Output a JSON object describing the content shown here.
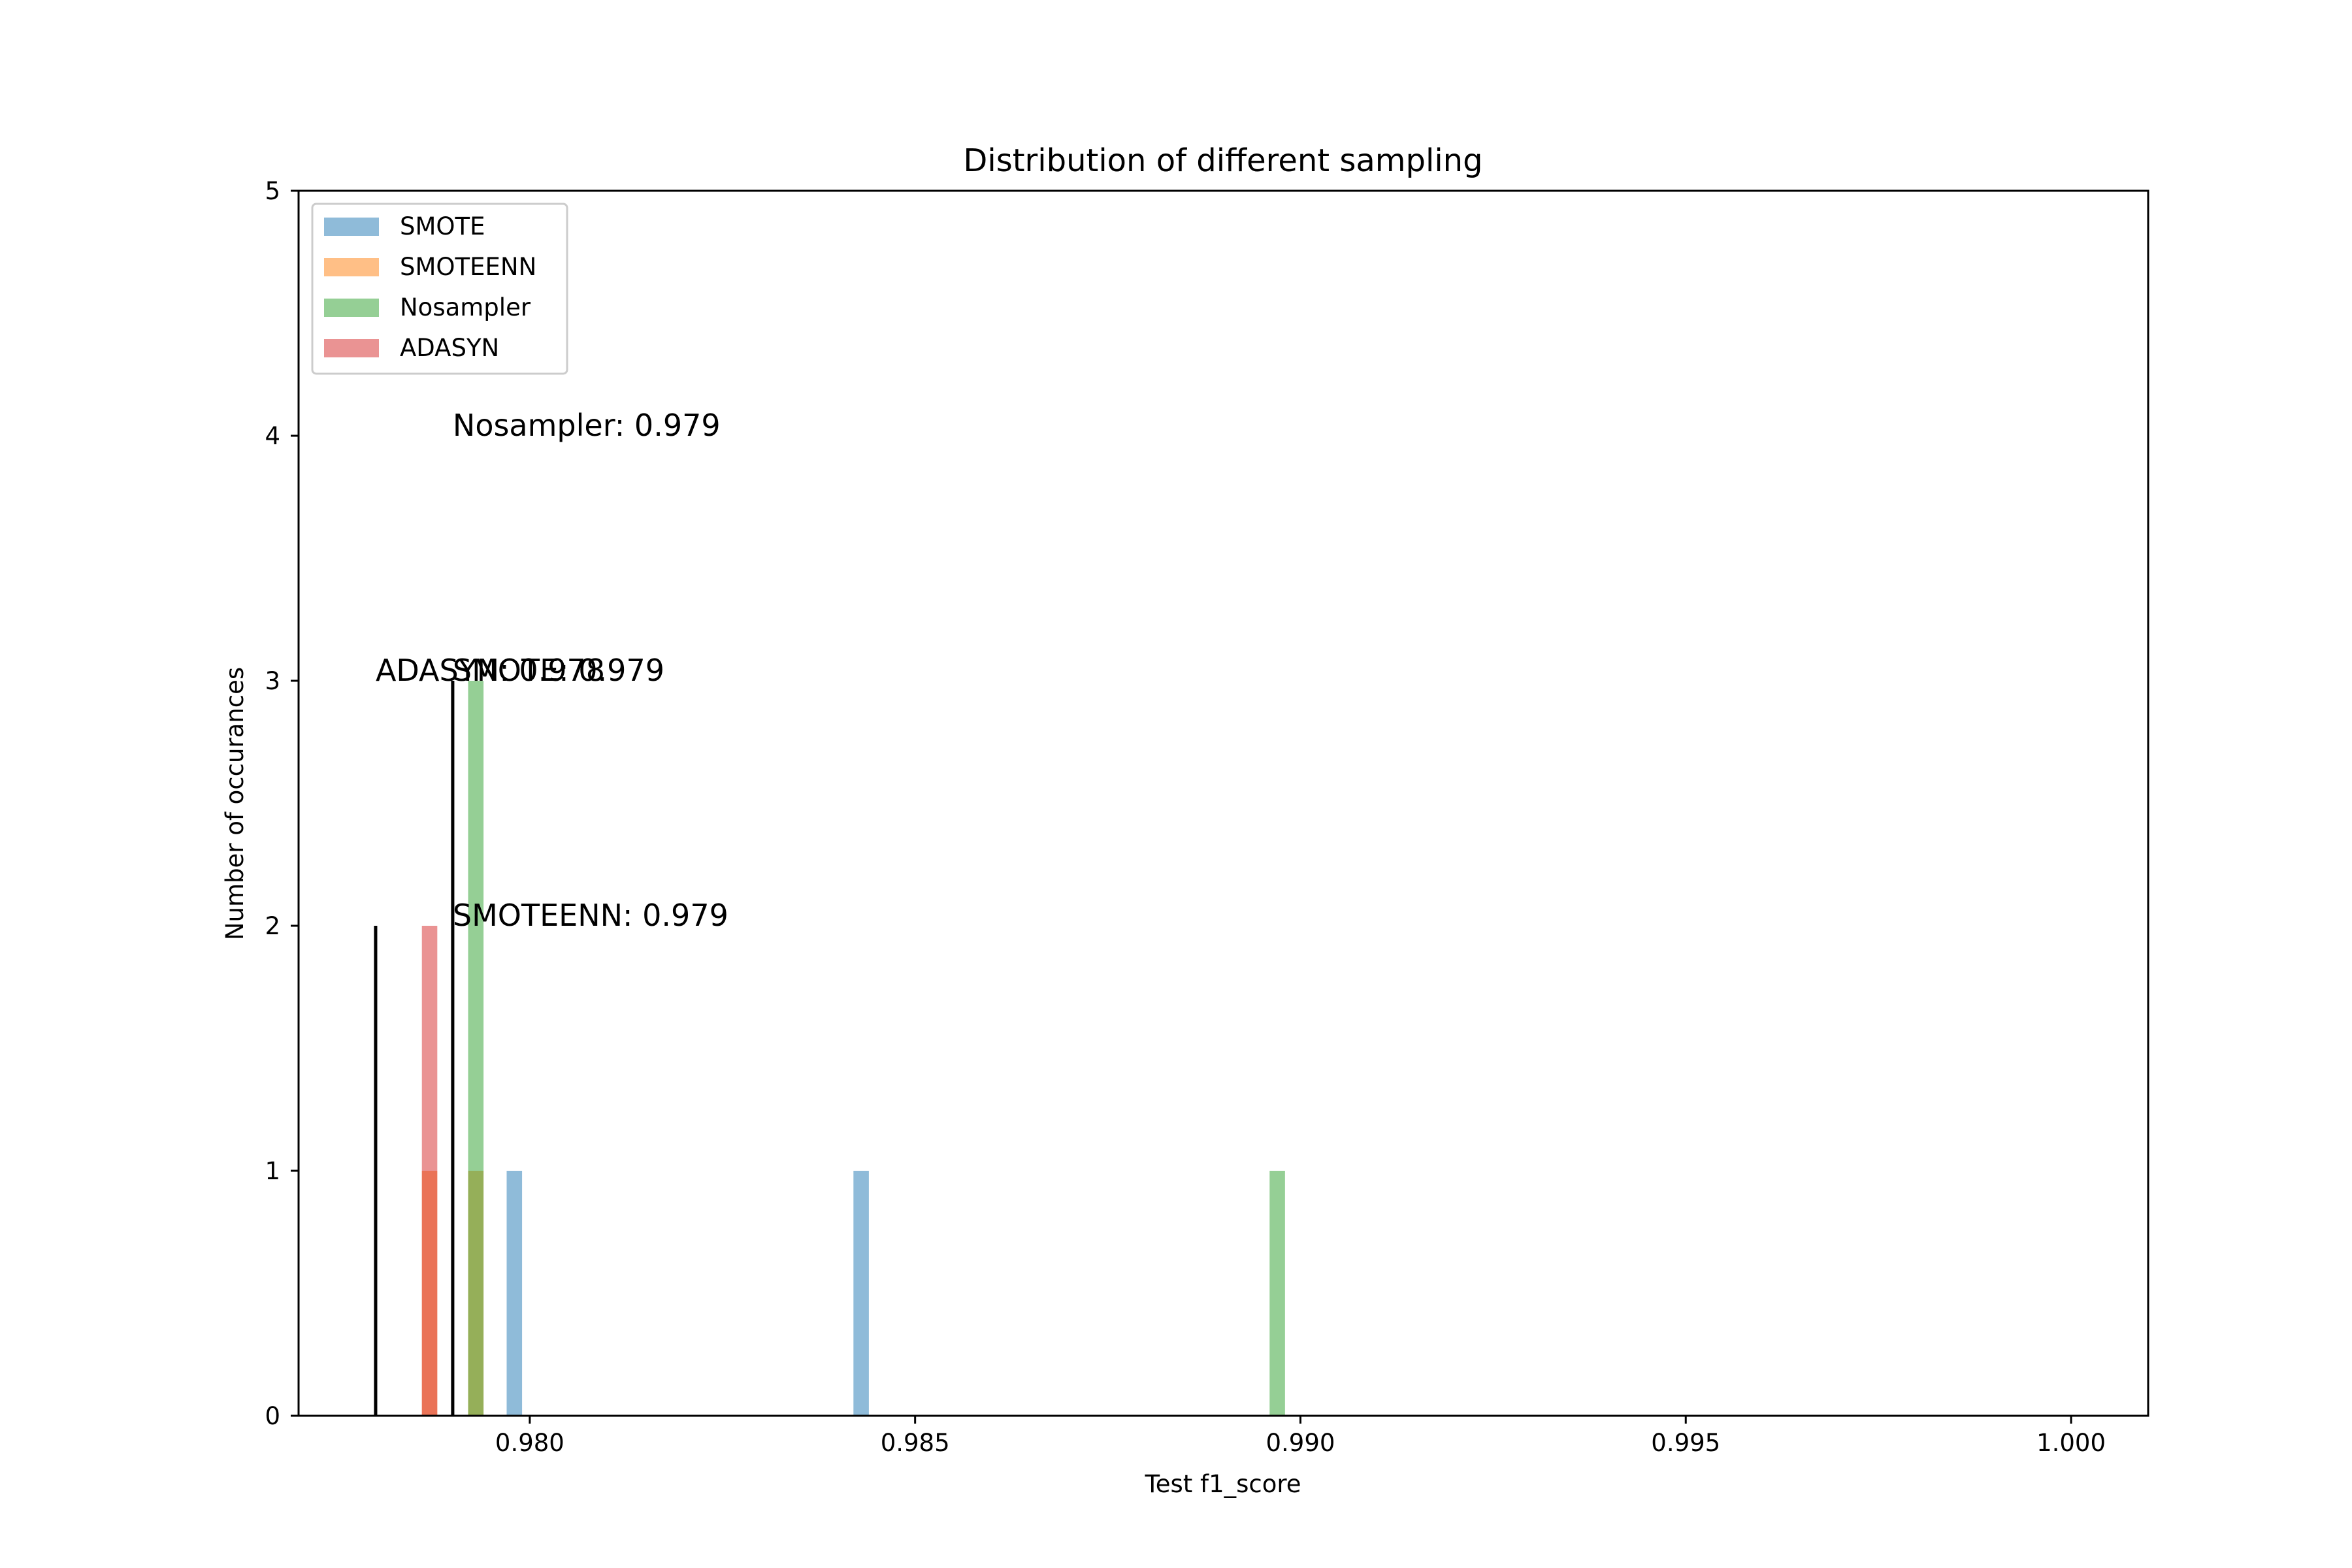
{
  "chart_data": {
    "type": "bar",
    "title": "Distribution of different sampling",
    "xlabel": "Test f1_score",
    "ylabel": "Number of occurances",
    "xlim": [
      0.977,
      1.001
    ],
    "ylim": [
      0,
      5
    ],
    "xticks": [
      0.98,
      0.985,
      0.99,
      0.995,
      1.0
    ],
    "xtick_labels": [
      "0.980",
      "0.985",
      "0.990",
      "0.995",
      "1.000"
    ],
    "yticks": [
      0,
      1,
      2,
      3,
      4,
      5
    ],
    "ytick_labels": [
      "0",
      "1",
      "2",
      "3",
      "4",
      "5"
    ],
    "bin_width": 0.0002,
    "grid": false,
    "legend_position": "top-left",
    "series": [
      {
        "name": "SMOTE",
        "color": "#1f77b4",
        "bins": [
          {
            "x": 0.9797,
            "count": 1
          },
          {
            "x": 0.9842,
            "count": 1
          }
        ]
      },
      {
        "name": "SMOTEENN",
        "color": "#ff7f0e",
        "bins": [
          {
            "x": 0.9786,
            "count": 1
          },
          {
            "x": 0.9792,
            "count": 1
          }
        ]
      },
      {
        "name": "Nosampler",
        "color": "#2ca02c",
        "bins": [
          {
            "x": 0.9792,
            "count": 3
          },
          {
            "x": 0.9896,
            "count": 1
          }
        ]
      },
      {
        "name": "ADASYN",
        "color": "#d62728",
        "bins": [
          {
            "x": 0.9786,
            "count": 2
          }
        ]
      }
    ],
    "mean_lines": [
      {
        "x": 0.978,
        "height": 2
      },
      {
        "x": 0.979,
        "height": 3
      }
    ],
    "annotations": [
      {
        "text": "Nosampler: 0.979",
        "x": 0.979,
        "y": 4
      },
      {
        "text": "ADASYN: 0.978",
        "x": 0.978,
        "y": 3
      },
      {
        "text": "SMOTE: 0.979",
        "x": 0.979,
        "y": 3
      },
      {
        "text": "SMOTEENN: 0.979",
        "x": 0.979,
        "y": 2
      }
    ]
  }
}
